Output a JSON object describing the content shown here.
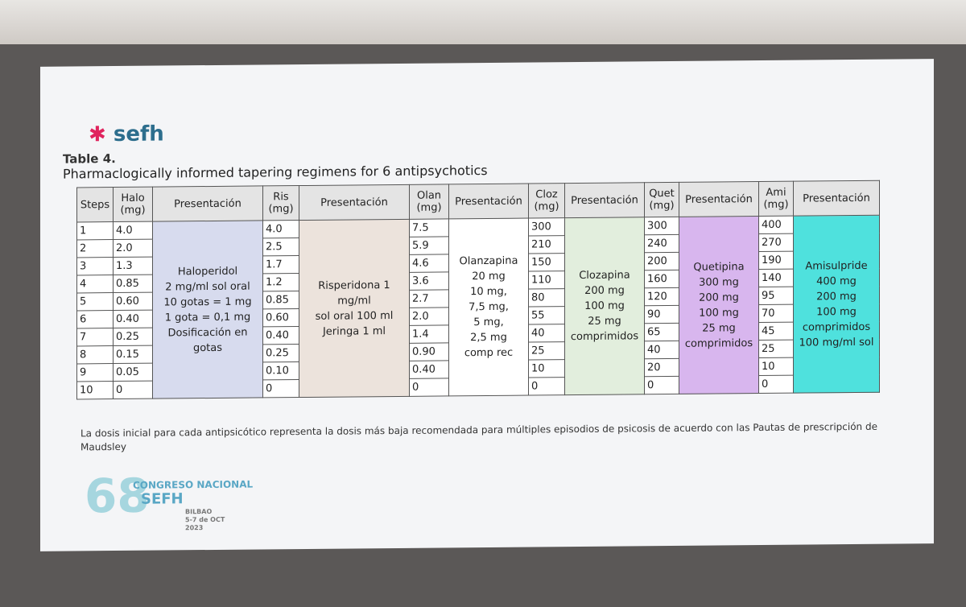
{
  "logo": {
    "name": "sefh"
  },
  "table": {
    "caption": "Table 4.",
    "title": "Pharmaclogically informed tapering regimens for 6 antipsychotics",
    "header": [
      "Steps",
      "Halo (mg)",
      "Presentación",
      "Ris (mg)",
      "Presentación",
      "Olan (mg)",
      "Presentación",
      "Cloz (mg)",
      "Presentación",
      "Quet (mg)",
      "Presentación",
      "Ami (mg)",
      "Presentación"
    ],
    "steps": [
      1,
      2,
      3,
      4,
      5,
      6,
      7,
      8,
      9,
      10
    ],
    "columns": [
      {
        "doses": [
          "4.0",
          "2.0",
          "1.3",
          "0.85",
          "0.60",
          "0.40",
          "0.25",
          "0.15",
          "0.05",
          "0"
        ],
        "presentation": [
          "Haloperidol",
          "2 mg/ml sol oral",
          "10 gotas = 1 mg",
          "1 gota = 0,1 mg",
          "Dosificación en gotas"
        ]
      },
      {
        "doses": [
          "4.0",
          "2.5",
          "1.7",
          "1.2",
          "0.85",
          "0.60",
          "0.40",
          "0.25",
          "0.10",
          "0"
        ],
        "presentation": [
          "Risperidona 1 mg/ml",
          "sol oral 100 ml",
          "Jeringa 1 ml"
        ]
      },
      {
        "doses": [
          "7.5",
          "5.9",
          "4.6",
          "3.6",
          "2.7",
          "2.0",
          "1.4",
          "0.90",
          "0.40",
          "0"
        ],
        "presentation": [
          "Olanzapina",
          "20 mg",
          "10 mg,",
          "7,5 mg,",
          "5 mg,",
          "2,5 mg",
          "comp rec"
        ]
      },
      {
        "doses": [
          "300",
          "210",
          "150",
          "110",
          "80",
          "55",
          "40",
          "25",
          "10",
          "0"
        ],
        "presentation": [
          "Clozapina",
          "200 mg",
          "100 mg",
          "25 mg",
          "comprimidos"
        ]
      },
      {
        "doses": [
          "300",
          "240",
          "200",
          "160",
          "120",
          "90",
          "65",
          "40",
          "20",
          "0"
        ],
        "presentation": [
          "Quetipina",
          "300 mg",
          "200 mg",
          "100 mg",
          "25 mg",
          "comprimidos"
        ]
      },
      {
        "doses": [
          "400",
          "270",
          "190",
          "140",
          "95",
          "70",
          "45",
          "25",
          "10",
          "0"
        ],
        "presentation": [
          "Amisulpride",
          "400 mg",
          "200 mg",
          "100 mg",
          "comprimidos",
          "100 mg/ml sol"
        ]
      }
    ]
  },
  "footnote": "La dosis inicial para cada antipsicótico representa la dosis más baja recomendada para múltiples episodios de psicosis de acuerdo con las Pautas de prescripción de Maudsley",
  "congress": {
    "number": "68",
    "name": "CONGRESO NACIONAL",
    "org": "SEFH",
    "city": "BILBAO",
    "dates": "5-7 de OCT",
    "year": "2023"
  }
}
